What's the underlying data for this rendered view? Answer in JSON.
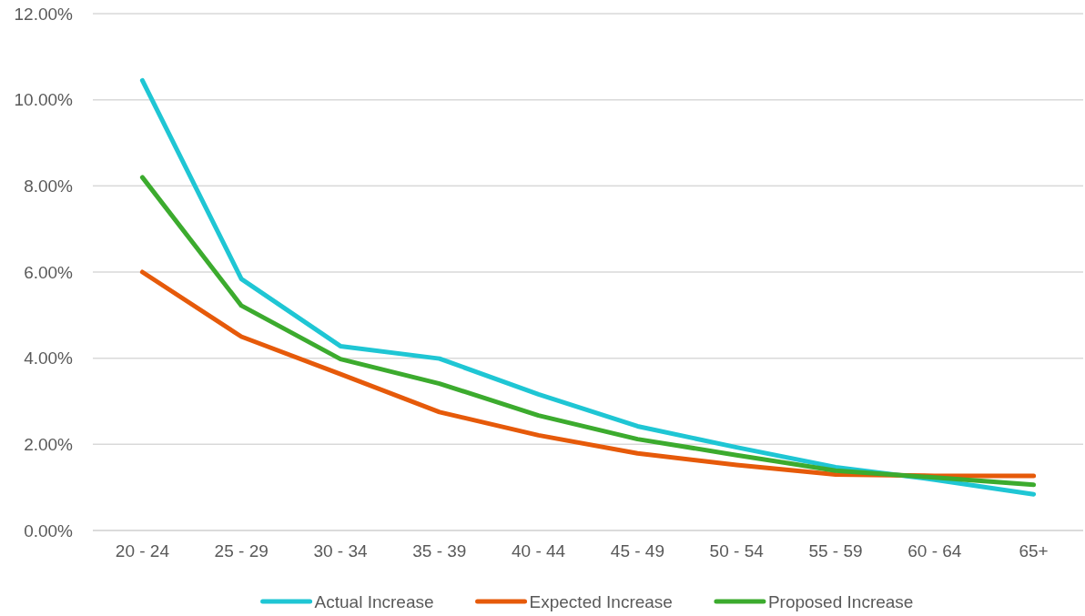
{
  "chart_data": {
    "type": "line",
    "categories": [
      "20 - 24",
      "25 - 29",
      "30 - 34",
      "35 - 39",
      "40 - 44",
      "45 - 49",
      "50 - 54",
      "55 - 59",
      "60 - 64",
      "65+"
    ],
    "series": [
      {
        "name": "Actual Increase",
        "color": "#1fc6d4",
        "values": [
          10.45,
          5.84,
          4.28,
          3.99,
          3.16,
          2.42,
          1.93,
          1.47,
          1.18,
          0.84
        ]
      },
      {
        "name": "Expected Increase",
        "color": "#e65a0a",
        "values": [
          6.0,
          4.5,
          3.63,
          2.75,
          2.21,
          1.79,
          1.52,
          1.3,
          1.27,
          1.27
        ]
      },
      {
        "name": "Proposed Increase",
        "color": "#3cab2e",
        "values": [
          8.2,
          5.22,
          3.98,
          3.41,
          2.67,
          2.12,
          1.75,
          1.39,
          1.23,
          1.06
        ]
      }
    ],
    "ylim": [
      0,
      12
    ],
    "yticks": [
      {
        "value": 0,
        "label": "0.00%"
      },
      {
        "value": 2,
        "label": "2.00%"
      },
      {
        "value": 4,
        "label": "4.00%"
      },
      {
        "value": 6,
        "label": "6.00%"
      },
      {
        "value": 8,
        "label": "8.00%"
      },
      {
        "value": 10,
        "label": "10.00%"
      },
      {
        "value": 12,
        "label": "12.00%"
      }
    ],
    "grid": "y",
    "legend": "bottom",
    "marker": "none",
    "line_style": "solid"
  }
}
